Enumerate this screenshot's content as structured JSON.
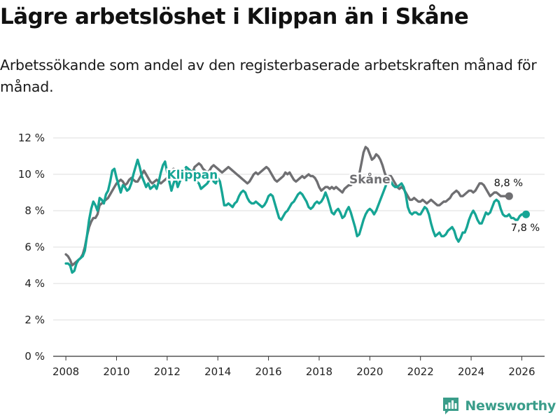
{
  "header": {
    "title": "Lägre arbetslöshet i Klippan än i Skåne",
    "subtitle": "Arbetssökande som andel av den registerbaserade arbetskraften månad för månad."
  },
  "brand": {
    "name": "Newsworthy",
    "icon": "bar-chart-logo-icon"
  },
  "colors": {
    "klippan": "#16a595",
    "skane": "#6f6f72",
    "grid": "#dddddd",
    "axis": "#333333"
  },
  "chart_data": {
    "type": "line",
    "title": "Lägre arbetslöshet i Klippan än i Skåne",
    "xlabel": "",
    "ylabel": "",
    "x_start": "2008-01",
    "x_step": "month",
    "xlim": [
      2007.5,
      2026.9
    ],
    "ylim": [
      0,
      12
    ],
    "x_ticks": [
      2008,
      2010,
      2012,
      2014,
      2016,
      2018,
      2020,
      2022,
      2024,
      2026
    ],
    "x_tick_labels": [
      "2008",
      "2010",
      "2012",
      "2014",
      "2016",
      "2018",
      "2020",
      "2022",
      "2024",
      "2026"
    ],
    "y_ticks": [
      0,
      2,
      4,
      6,
      8,
      10,
      12
    ],
    "y_tick_labels": [
      "0 %",
      "2 %",
      "4 %",
      "6 %",
      "8 %",
      "10 %",
      "12 %"
    ],
    "grid": true,
    "series": [
      {
        "name": "Skåne",
        "label": "Skåne",
        "end_label": "8,8 %",
        "values": [
          5.6,
          5.5,
          5.3,
          5.0,
          5.1,
          5.2,
          5.3,
          5.4,
          5.6,
          6.0,
          6.6,
          7.1,
          7.4,
          7.6,
          7.6,
          7.8,
          8.3,
          8.4,
          8.5,
          8.6,
          8.7,
          8.9,
          9.1,
          9.3,
          9.5,
          9.6,
          9.7,
          9.6,
          9.4,
          9.5,
          9.7,
          9.8,
          9.7,
          9.6,
          9.6,
          9.8,
          10.0,
          10.2,
          10.0,
          9.8,
          9.6,
          9.5,
          9.6,
          9.7,
          9.6,
          9.5,
          9.6,
          9.7,
          9.8,
          10.0,
          10.2,
          10.3,
          10.2,
          10.0,
          9.9,
          10.0,
          10.1,
          10.2,
          10.1,
          10.0,
          10.1,
          10.4,
          10.5,
          10.6,
          10.5,
          10.3,
          10.2,
          10.1,
          10.2,
          10.4,
          10.5,
          10.4,
          10.3,
          10.2,
          10.1,
          10.2,
          10.3,
          10.4,
          10.3,
          10.2,
          10.1,
          10.0,
          9.9,
          9.8,
          9.7,
          9.6,
          9.5,
          9.6,
          9.8,
          10.0,
          10.1,
          10.0,
          10.1,
          10.2,
          10.3,
          10.4,
          10.3,
          10.1,
          9.9,
          9.7,
          9.6,
          9.7,
          9.8,
          9.9,
          10.1,
          10.0,
          10.1,
          9.9,
          9.7,
          9.6,
          9.7,
          9.8,
          9.9,
          9.8,
          9.9,
          10.0,
          9.9,
          9.9,
          9.8,
          9.6,
          9.3,
          9.1,
          9.2,
          9.3,
          9.3,
          9.2,
          9.3,
          9.2,
          9.3,
          9.2,
          9.1,
          9.0,
          9.2,
          9.3,
          9.4,
          9.4,
          9.5,
          9.6,
          9.8,
          10.0,
          10.6,
          11.2,
          11.5,
          11.4,
          11.1,
          10.8,
          10.9,
          11.1,
          11.0,
          10.8,
          10.5,
          10.1,
          9.8,
          9.9,
          9.9,
          9.7,
          9.5,
          9.3,
          9.2,
          9.3,
          9.2,
          9.0,
          8.8,
          8.6,
          8.6,
          8.7,
          8.6,
          8.5,
          8.5,
          8.6,
          8.5,
          8.4,
          8.5,
          8.6,
          8.5,
          8.4,
          8.3,
          8.3,
          8.4,
          8.5,
          8.5,
          8.6,
          8.7,
          8.9,
          9.0,
          9.1,
          9.0,
          8.8,
          8.8,
          8.9,
          9.0,
          9.1,
          9.1,
          9.0,
          9.1,
          9.3,
          9.5,
          9.5,
          9.4,
          9.2,
          9.0,
          8.8,
          8.9,
          9.0,
          9.0,
          8.9,
          8.8,
          8.8,
          8.8,
          8.8,
          8.8
        ]
      },
      {
        "name": "Klippan",
        "label": "Klippan",
        "end_label": "7,8 %",
        "values": [
          5.1,
          5.1,
          5.0,
          4.6,
          4.7,
          5.1,
          5.3,
          5.4,
          5.5,
          5.8,
          6.6,
          7.5,
          8.1,
          8.5,
          8.3,
          8.0,
          8.7,
          8.6,
          8.4,
          8.9,
          9.1,
          9.6,
          10.2,
          10.3,
          9.8,
          9.4,
          9.0,
          9.4,
          9.3,
          9.1,
          9.2,
          9.5,
          10.0,
          10.4,
          10.8,
          10.4,
          9.9,
          9.6,
          9.3,
          9.5,
          9.2,
          9.3,
          9.4,
          9.2,
          9.6,
          10.1,
          10.5,
          10.7,
          10.1,
          9.6,
          9.1,
          9.5,
          9.8,
          9.3,
          9.6,
          9.9,
          10.2,
          10.4,
          10.3,
          10.2,
          10.1,
          10.2,
          9.6,
          9.5,
          9.2,
          9.3,
          9.4,
          9.5,
          9.7,
          10.0,
          9.6,
          9.5,
          9.8,
          9.6,
          9.0,
          8.3,
          8.3,
          8.4,
          8.3,
          8.2,
          8.4,
          8.5,
          8.8,
          9.0,
          9.1,
          9.0,
          8.7,
          8.5,
          8.4,
          8.4,
          8.5,
          8.4,
          8.3,
          8.2,
          8.3,
          8.5,
          8.8,
          8.9,
          8.8,
          8.4,
          8.0,
          7.6,
          7.5,
          7.7,
          7.9,
          8.0,
          8.2,
          8.4,
          8.5,
          8.7,
          8.9,
          9.0,
          8.9,
          8.7,
          8.5,
          8.2,
          8.1,
          8.2,
          8.4,
          8.5,
          8.4,
          8.5,
          8.7,
          9.0,
          8.7,
          8.3,
          7.9,
          7.8,
          8.0,
          8.1,
          7.9,
          7.6,
          7.7,
          8.0,
          8.2,
          7.9,
          7.5,
          7.1,
          6.6,
          6.7,
          7.1,
          7.5,
          7.8,
          8.0,
          8.1,
          8.0,
          7.8,
          8.0,
          8.3,
          8.6,
          8.9,
          9.2,
          9.5,
          9.6,
          9.6,
          9.4,
          9.3,
          9.3,
          9.4,
          9.5,
          9.3,
          8.9,
          8.2,
          7.9,
          7.8,
          7.9,
          7.9,
          7.8,
          7.8,
          8.0,
          8.2,
          8.1,
          7.8,
          7.3,
          6.9,
          6.6,
          6.7,
          6.8,
          6.6,
          6.6,
          6.7,
          6.9,
          7.0,
          7.1,
          6.9,
          6.5,
          6.3,
          6.5,
          6.8,
          6.8,
          7.1,
          7.5,
          7.8,
          8.0,
          7.8,
          7.5,
          7.3,
          7.3,
          7.6,
          7.9,
          7.8,
          7.9,
          8.2,
          8.5,
          8.6,
          8.5,
          8.1,
          7.8,
          7.7,
          7.7,
          7.8,
          7.6,
          7.6,
          7.5,
          7.5,
          7.7,
          7.8,
          7.8,
          7.8
        ]
      }
    ]
  }
}
